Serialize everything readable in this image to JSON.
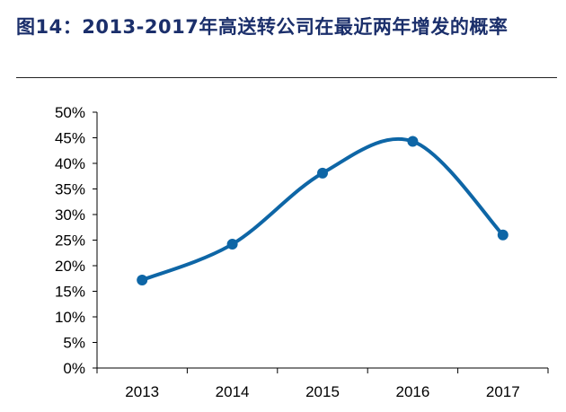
{
  "figure": {
    "title": "图14：2013-2017年高送转公司在最近两年增发的概率"
  },
  "chart_data": {
    "type": "line",
    "title": "",
    "xlabel": "",
    "ylabel": "",
    "categories": [
      "2013",
      "2014",
      "2015",
      "2016",
      "2017"
    ],
    "series": [
      {
        "values": [
          17.2,
          24.2,
          38.1,
          44.3,
          26.0
        ],
        "color": "#0e66a6"
      }
    ],
    "ylim": [
      0,
      50
    ],
    "yticks": [
      0,
      5,
      10,
      15,
      20,
      25,
      30,
      35,
      40,
      45,
      50
    ],
    "ytick_format": "percent",
    "smooth": true,
    "grid": false,
    "legend": "none"
  }
}
